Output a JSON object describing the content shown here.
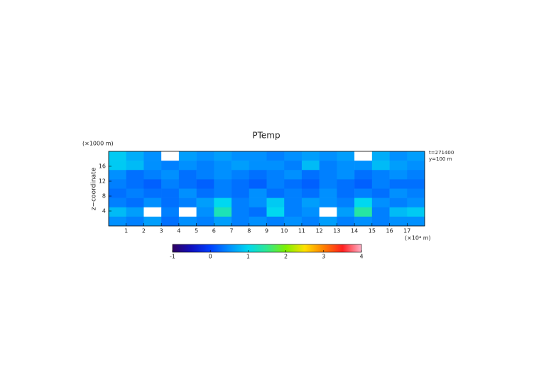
{
  "chart_data": {
    "type": "heatmap",
    "title": "PTemp",
    "ylabel": "z−coordinate",
    "yunit": "(×1000 m)",
    "xunit": "(×10⁴ m)",
    "annotations": [
      "t=271400",
      "y=100 m"
    ],
    "x": [
      0.5,
      1.5,
      2.5,
      3.5,
      4.5,
      5.5,
      6.5,
      7.5,
      8.5,
      9.5,
      10.5,
      11.5,
      12.5,
      13.5,
      14.5,
      15.5,
      16.5,
      17.5
    ],
    "y": [
      18.75,
      16.25,
      13.75,
      11.25,
      8.75,
      6.25,
      3.75,
      1.25
    ],
    "z": [
      [
        0.9,
        0.7,
        0.5,
        4.5,
        0.6,
        0.5,
        0.6,
        0.5,
        0.5,
        0.4,
        0.5,
        0.6,
        0.5,
        0.6,
        4.5,
        0.7,
        0.5,
        0.6
      ],
      [
        0.9,
        0.8,
        0.5,
        0.4,
        0.5,
        0.4,
        0.5,
        0.6,
        0.5,
        0.5,
        0.4,
        0.8,
        0.4,
        0.5,
        0.5,
        0.8,
        0.6,
        0.5
      ],
      [
        0.5,
        0.3,
        0.4,
        0.5,
        0.3,
        0.4,
        0.5,
        0.4,
        0.3,
        0.4,
        0.5,
        0.3,
        0.4,
        0.5,
        0.3,
        0.4,
        0.5,
        0.4
      ],
      [
        0.4,
        0.3,
        0.2,
        0.4,
        0.3,
        0.2,
        0.4,
        0.3,
        0.2,
        0.4,
        0.3,
        0.2,
        0.4,
        0.3,
        0.2,
        0.4,
        0.3,
        0.3
      ],
      [
        0.3,
        0.4,
        0.3,
        0.3,
        0.5,
        0.3,
        0.4,
        0.3,
        0.5,
        0.3,
        0.4,
        0.3,
        0.5,
        0.3,
        0.4,
        0.3,
        0.5,
        0.4
      ],
      [
        0.4,
        0.3,
        0.5,
        0.3,
        0.4,
        0.6,
        1.0,
        0.4,
        0.5,
        0.9,
        0.4,
        0.6,
        0.5,
        0.4,
        1.0,
        0.5,
        0.4,
        0.5
      ],
      [
        0.8,
        0.6,
        4.5,
        0.4,
        4.5,
        0.5,
        1.3,
        0.4,
        0.3,
        1.0,
        0.4,
        0.5,
        4.5,
        0.6,
        1.4,
        0.4,
        0.8,
        0.9
      ],
      [
        0.5,
        0.4,
        0.6,
        0.3,
        0.5,
        0.4,
        0.6,
        0.4,
        0.5,
        0.4,
        0.5,
        0.4,
        0.6,
        0.4,
        0.5,
        0.4,
        0.5,
        0.5
      ]
    ],
    "xlim": [
      0,
      18
    ],
    "ylim": [
      0,
      20
    ],
    "xticks": [
      1,
      2,
      3,
      4,
      5,
      6,
      7,
      8,
      9,
      10,
      11,
      12,
      13,
      14,
      15,
      16,
      17
    ],
    "yticks": [
      4,
      8,
      12,
      16
    ],
    "clim": [
      -1,
      4
    ],
    "cticks": [
      -1,
      0,
      1,
      2,
      3,
      4
    ],
    "over_color": "#ffffff",
    "colormap": [
      {
        "value": -1,
        "color": "#300060"
      },
      {
        "value": -0.5,
        "color": "#1010c0"
      },
      {
        "value": 0,
        "color": "#0040ff"
      },
      {
        "value": 0.5,
        "color": "#0090ff"
      },
      {
        "value": 1,
        "color": "#00d8f0"
      },
      {
        "value": 1.5,
        "color": "#30e890"
      },
      {
        "value": 2,
        "color": "#80f000"
      },
      {
        "value": 2.5,
        "color": "#ffe000"
      },
      {
        "value": 3,
        "color": "#ff8000"
      },
      {
        "value": 3.5,
        "color": "#ff2020"
      },
      {
        "value": 4,
        "color": "#ffb0c8"
      }
    ]
  }
}
